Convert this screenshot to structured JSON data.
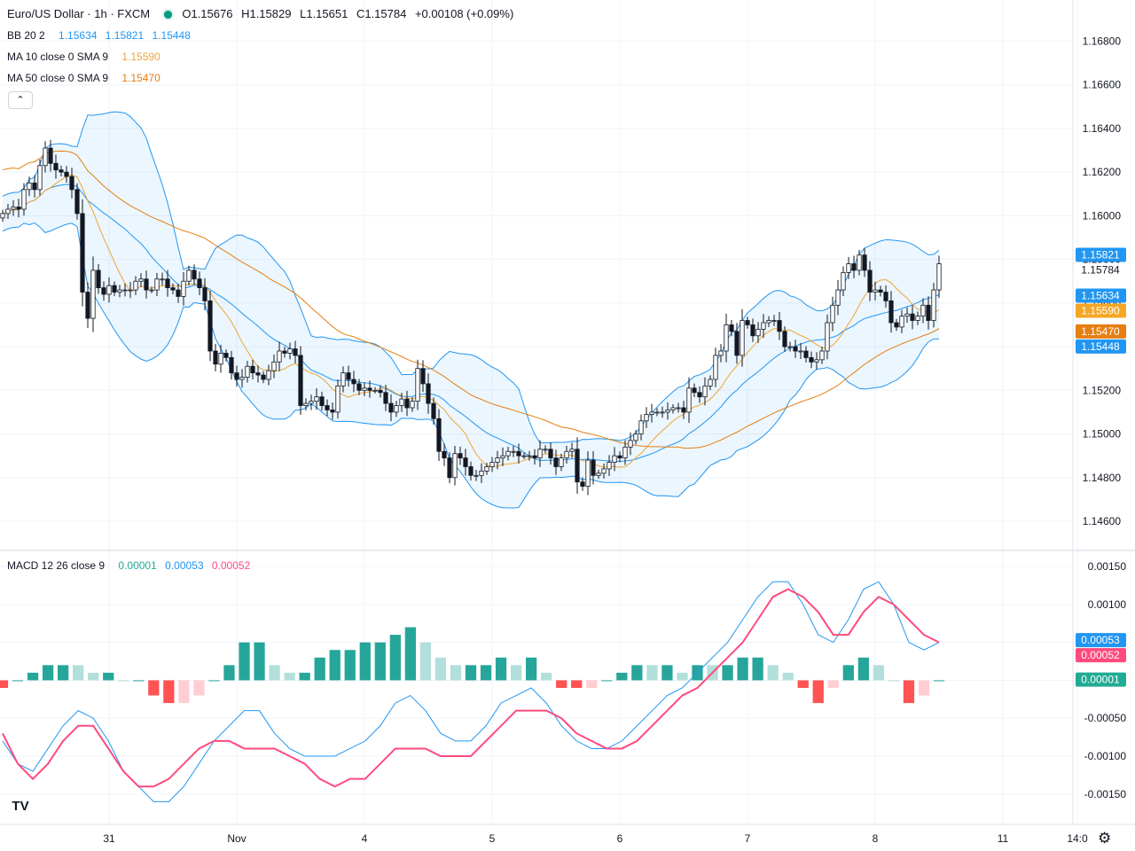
{
  "header": {
    "symbol": "Euro/US Dollar · 1h · FXCM",
    "open": "O1.15676",
    "high": "H1.15829",
    "low": "L1.15651",
    "close": "C1.15784",
    "change": "+0.00108 (+0.09%)"
  },
  "indicators": {
    "bb": {
      "label": "BB 20 2",
      "basis": "1.15634",
      "upper": "1.15821",
      "lower": "1.15448",
      "color": "#2196f3"
    },
    "ma10": {
      "label": "MA 10 close 0 SMA 9",
      "value": "1.15590",
      "color": "#f0a533"
    },
    "ma50": {
      "label": "MA 50 close 0 SMA 9",
      "value": "1.15470",
      "color": "#e67e12"
    },
    "macd": {
      "label": "MACD 12 26 close 9",
      "hist": "0.00001",
      "macd": "0.00053",
      "signal": "0.00052",
      "hist_color": "#22ab94",
      "macd_color": "#2196f3",
      "signal_color": "#ff4a7d"
    }
  },
  "collapse_glyph": "⌃",
  "logo_text": "TV",
  "settings_glyph": "⚙",
  "chart_data": {
    "type": "candlestick",
    "price_axis": {
      "ticks": [
        "1.16800",
        "1.16600",
        "1.16400",
        "1.16200",
        "1.16000",
        "1.15800",
        "1.15600",
        "1.15400",
        "1.15200",
        "1.15000",
        "1.14800",
        "1.14600"
      ],
      "ylim": [
        1.1447,
        1.1694
      ]
    },
    "macd_axis": {
      "ticks": [
        "0.00150",
        "0.00100",
        "0.00050",
        "0",
        "-0.00050",
        "-0.00100",
        "-0.00150"
      ],
      "ylim": [
        -0.0019,
        0.0017
      ]
    },
    "x_ticks": [
      "31",
      "Nov",
      "4",
      "5",
      "6",
      "7",
      "8",
      "11",
      "14:0"
    ],
    "x_tick_bars": [
      20,
      44,
      68,
      92,
      116,
      140,
      164,
      188,
      202
    ],
    "price_labels": [
      {
        "text": "1.15821",
        "kind": "bb_upper",
        "value": 1.15821
      },
      {
        "text": "1.15784",
        "kind": "last",
        "value": 1.15784
      },
      {
        "text": "1.15634",
        "kind": "bb_basis",
        "value": 1.15634
      },
      {
        "text": "1.15590",
        "kind": "ma10",
        "value": 1.1559
      },
      {
        "text": "1.15470",
        "kind": "ma50",
        "value": 1.1547
      },
      {
        "text": "1.15448",
        "kind": "bb_lower",
        "value": 1.15448
      }
    ],
    "macd_labels": [
      {
        "text": "0.00053",
        "kind": "macd",
        "value": 0.00053
      },
      {
        "text": "0.00052",
        "kind": "signal",
        "value": 0.00052
      },
      {
        "text": "0.00001",
        "kind": "hist",
        "value": 1e-05
      }
    ],
    "closes": [
      1.1601,
      1.1603,
      1.1604,
      1.1603,
      1.1612,
      1.1615,
      1.1612,
      1.1623,
      1.1631,
      1.1624,
      1.1621,
      1.162,
      1.1618,
      1.1612,
      1.1601,
      1.1565,
      1.1553,
      1.1575,
      1.1567,
      1.1564,
      1.1568,
      1.1565,
      1.1566,
      1.1566,
      1.1566,
      1.157,
      1.1571,
      1.1566,
      1.1566,
      1.1571,
      1.1571,
      1.1567,
      1.1566,
      1.1563,
      1.157,
      1.1575,
      1.1571,
      1.1567,
      1.1561,
      1.1538,
      1.1532,
      1.1537,
      1.1535,
      1.1528,
      1.1525,
      1.1526,
      1.1531,
      1.1528,
      1.1527,
      1.1525,
      1.1529,
      1.1533,
      1.1538,
      1.1537,
      1.1539,
      1.1536,
      1.1513,
      1.1514,
      1.1515,
      1.1517,
      1.1513,
      1.1511,
      1.151,
      1.1522,
      1.1528,
      1.1525,
      1.1523,
      1.152,
      1.1521,
      1.152,
      1.152,
      1.1519,
      1.1514,
      1.151,
      1.1513,
      1.1516,
      1.1512,
      1.1515,
      1.153,
      1.1523,
      1.1514,
      1.1507,
      1.1492,
      1.1489,
      1.148,
      1.1491,
      1.1489,
      1.1485,
      1.1481,
      1.1481,
      1.1483,
      1.1485,
      1.1487,
      1.1489,
      1.149,
      1.1492,
      1.1492,
      1.149,
      1.149,
      1.149,
      1.1489,
      1.1493,
      1.1493,
      1.1489,
      1.1485,
      1.1489,
      1.1492,
      1.1493,
      1.1478,
      1.1476,
      1.1488,
      1.1481,
      1.1482,
      1.1484,
      1.1487,
      1.149,
      1.1489,
      1.1494,
      1.1497,
      1.15,
      1.1506,
      1.1509,
      1.151,
      1.151,
      1.151,
      1.1511,
      1.1512,
      1.1512,
      1.151,
      1.1521,
      1.1519,
      1.1517,
      1.1522,
      1.1525,
      1.1536,
      1.1538,
      1.155,
      1.1547,
      1.1536,
      1.1552,
      1.155,
      1.1545,
      1.1548,
      1.1551,
      1.1552,
      1.1552,
      1.1547,
      1.154,
      1.154,
      1.1538,
      1.1538,
      1.1535,
      1.1533,
      1.1534,
      1.1538,
      1.1551,
      1.1559,
      1.1566,
      1.1574,
      1.1578,
      1.1575,
      1.1582,
      1.1575,
      1.1565,
      1.1566,
      1.1565,
      1.1561,
      1.1551,
      1.1549,
      1.1554,
      1.1555,
      1.1552,
      1.1554,
      1.1559,
      1.1552,
      1.1566,
      1.1578
    ],
    "macd": {
      "macd": [
        -0.0008,
        -0.0011,
        -0.0012,
        -0.0009,
        -0.0006,
        -0.0004,
        -0.0005,
        -0.0008,
        -0.0012,
        -0.0014,
        -0.0016,
        -0.0016,
        -0.0014,
        -0.0011,
        -0.0008,
        -0.0006,
        -0.0004,
        -0.0004,
        -0.0007,
        -0.0009,
        -0.001,
        -0.001,
        -0.001,
        -0.0009,
        -0.0008,
        -0.0006,
        -0.0003,
        -0.0002,
        -0.0004,
        -0.0007,
        -0.0008,
        -0.0008,
        -0.0006,
        -0.0003,
        -0.0002,
        -0.0001,
        -0.0003,
        -0.0006,
        -0.0008,
        -0.0009,
        -0.0009,
        -0.0008,
        -0.0006,
        -0.0004,
        -0.0002,
        -0.0001,
        0.0001,
        0.0003,
        0.0005,
        0.0008,
        0.0011,
        0.0013,
        0.0013,
        0.001,
        0.0006,
        0.0005,
        0.0008,
        0.0012,
        0.0013,
        0.001,
        0.0005,
        0.0004,
        0.0005
      ],
      "signal": [
        -0.0007,
        -0.0011,
        -0.0013,
        -0.0011,
        -0.0008,
        -0.0006,
        -0.0006,
        -0.0009,
        -0.0012,
        -0.0014,
        -0.0014,
        -0.0013,
        -0.0011,
        -0.0009,
        -0.0008,
        -0.0008,
        -0.0009,
        -0.0009,
        -0.0009,
        -0.001,
        -0.0011,
        -0.0013,
        -0.0014,
        -0.0013,
        -0.0013,
        -0.0011,
        -0.0009,
        -0.0009,
        -0.0009,
        -0.001,
        -0.001,
        -0.001,
        -0.0008,
        -0.0006,
        -0.0004,
        -0.0004,
        -0.0004,
        -0.0005,
        -0.0007,
        -0.0008,
        -0.0009,
        -0.0009,
        -0.0008,
        -0.0006,
        -0.0004,
        -0.0002,
        -0.0001,
        0.0001,
        0.0003,
        0.0005,
        0.0008,
        0.0011,
        0.0012,
        0.0011,
        0.0009,
        0.0006,
        0.0006,
        0.0009,
        0.0011,
        0.001,
        0.0008,
        0.0006,
        0.0005
      ]
    }
  }
}
